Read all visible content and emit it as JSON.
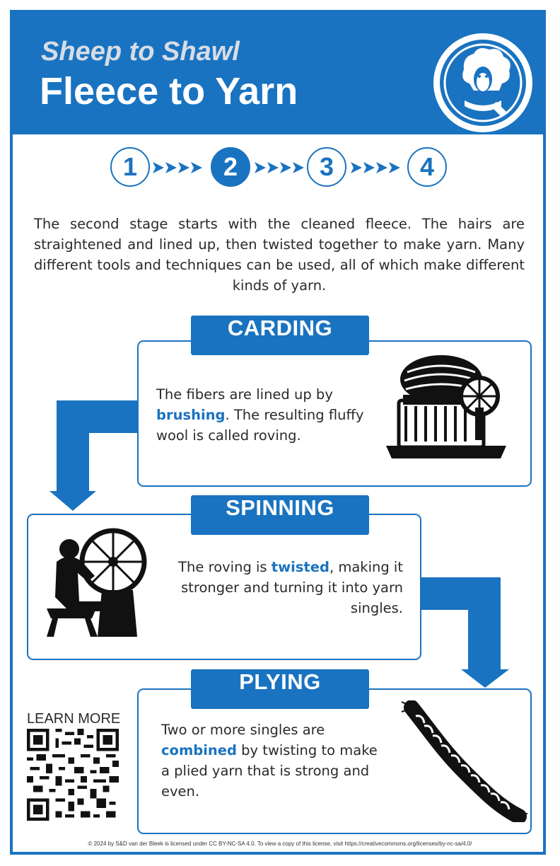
{
  "header": {
    "subtitle": "Sheep to Shawl",
    "title": "Fleece to Yarn",
    "logo_icon": "sheep-logo-icon"
  },
  "steps": {
    "labels": [
      "1",
      "2",
      "3",
      "4"
    ],
    "current": "2"
  },
  "intro": "The second stage starts with the cleaned fleece. The hairs are straightened and lined up, then twisted together to make yarn. Many different tools and techniques can be used, all of which make different kinds of yarn.",
  "sections": [
    {
      "title": "CARDING",
      "text_before": "The fibers are lined up by ",
      "keyword": "brushing",
      "text_after": ". The resulting fluffy wool is called roving.",
      "icon": "carding-machine-icon"
    },
    {
      "title": "SPINNING",
      "text_before": "The roving is ",
      "keyword": "twisted",
      "text_after": ", making it stronger and turning it into yarn singles.",
      "icon": "spinning-wheel-icon"
    },
    {
      "title": "PLYING",
      "text_before": "Two or more singles are ",
      "keyword": "combined",
      "text_after": " by twisting to make a plied yarn that is strong and even.",
      "icon": "plied-yarn-icon"
    }
  ],
  "learn_more": {
    "label": "LEARN MORE",
    "icon": "qr-code-icon"
  },
  "footer": "© 2024 by S&D van der Bleek is licensed under CC BY-NC-SA 4.0. To view a copy of this license, visit https://creativecommons.org/licenses/by-nc-sa/4.0/",
  "colors": {
    "accent": "#1a73c0",
    "header_subtitle": "#d6dde6",
    "text": "#2a2a2a"
  }
}
